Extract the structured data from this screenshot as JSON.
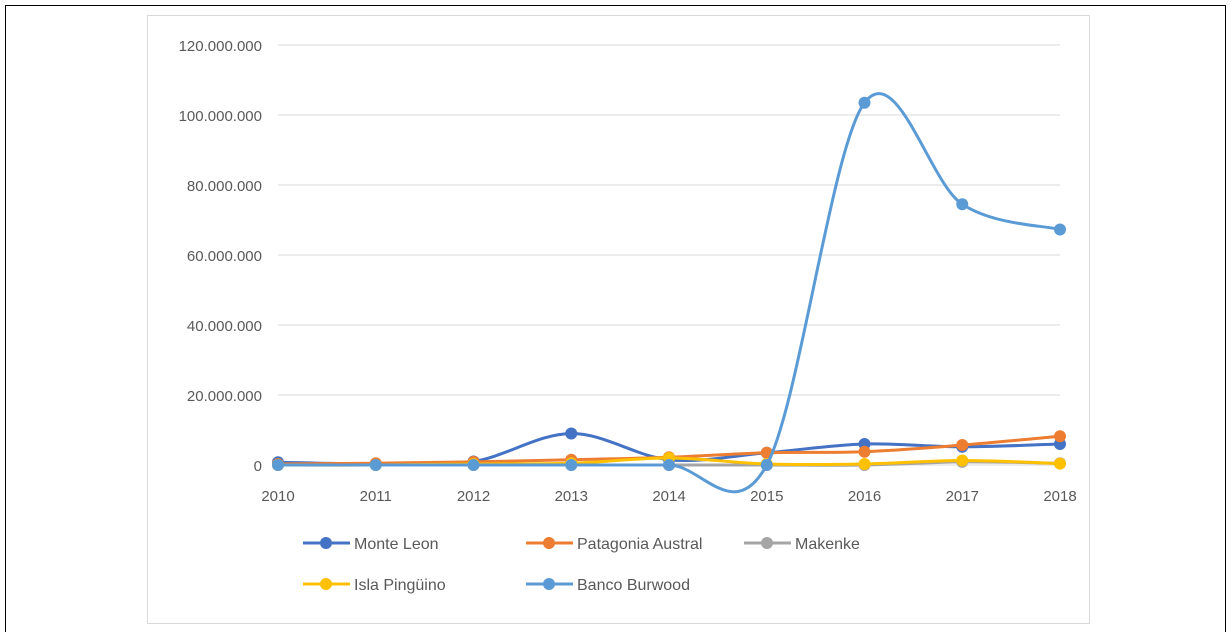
{
  "chart_data": {
    "type": "line",
    "title": "",
    "xlabel": "",
    "ylabel": "",
    "x": [
      "2010",
      "2011",
      "2012",
      "2013",
      "2014",
      "2015",
      "2016",
      "2017",
      "2018"
    ],
    "ylim": [
      0,
      120000000
    ],
    "yticks": [
      0,
      20000000,
      40000000,
      60000000,
      80000000,
      100000000,
      120000000
    ],
    "ytick_labels": [
      "0",
      "20.000.000",
      "40.000.000",
      "60.000.000",
      "80.000.000",
      "100.000.000",
      "120.000.000"
    ],
    "grid": "horizontal",
    "legend_position": "bottom",
    "smooth": true,
    "series": [
      {
        "name": "Monte Leon",
        "color": "#4472c4",
        "values": [
          800000,
          300000,
          1000000,
          9000000,
          1500000,
          3500000,
          6000000,
          5200000,
          6000000
        ]
      },
      {
        "name": "Patagonia Austral",
        "color": "#ed7d31",
        "values": [
          300000,
          500000,
          900000,
          1500000,
          2200000,
          3500000,
          3800000,
          5700000,
          8200000
        ]
      },
      {
        "name": "Makenke",
        "color": "#a5a5a5",
        "values": [
          0,
          0,
          0,
          0,
          0,
          0,
          0,
          900000,
          500000
        ]
      },
      {
        "name": "Isla Pingüino",
        "color": "#ffc000",
        "values": [
          0,
          0,
          300000,
          500000,
          2000000,
          300000,
          300000,
          1300000,
          400000
        ]
      },
      {
        "name": "Banco Burwood",
        "color": "#5b9bd5",
        "values": [
          0,
          0,
          0,
          0,
          0,
          0,
          103500000,
          74500000,
          67300000
        ]
      }
    ]
  }
}
